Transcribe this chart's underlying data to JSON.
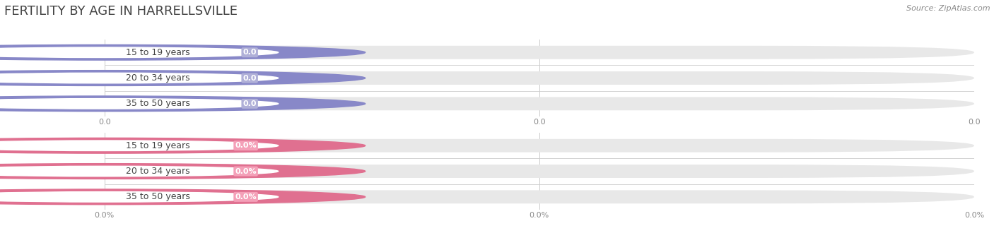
{
  "title": "FERTILITY BY AGE IN HARRELLSVILLE",
  "source": "Source: ZipAtlas.com",
  "top_section": {
    "categories": [
      "15 to 19 years",
      "20 to 34 years",
      "35 to 50 years"
    ],
    "values": [
      0.0,
      0.0,
      0.0
    ],
    "bar_color": "#b0b0d8",
    "bar_bg_color": "#e8e8e8",
    "dot_color": "#8888c8",
    "tick_labels": [
      "0.0",
      "0.0",
      "0.0"
    ]
  },
  "bottom_section": {
    "categories": [
      "15 to 19 years",
      "20 to 34 years",
      "35 to 50 years"
    ],
    "values": [
      0.0,
      0.0,
      0.0
    ],
    "bar_color": "#f4a0b8",
    "bar_bg_color": "#e8e8e8",
    "dot_color": "#e07090",
    "tick_labels": [
      "0.0%",
      "0.0%",
      "0.0%"
    ]
  },
  "bg_color": "#ffffff",
  "text_color": "#444444",
  "grid_color": "#cccccc",
  "title_fontsize": 13,
  "label_fontsize": 9,
  "value_fontsize": 8,
  "tick_fontsize": 8,
  "source_fontsize": 8
}
